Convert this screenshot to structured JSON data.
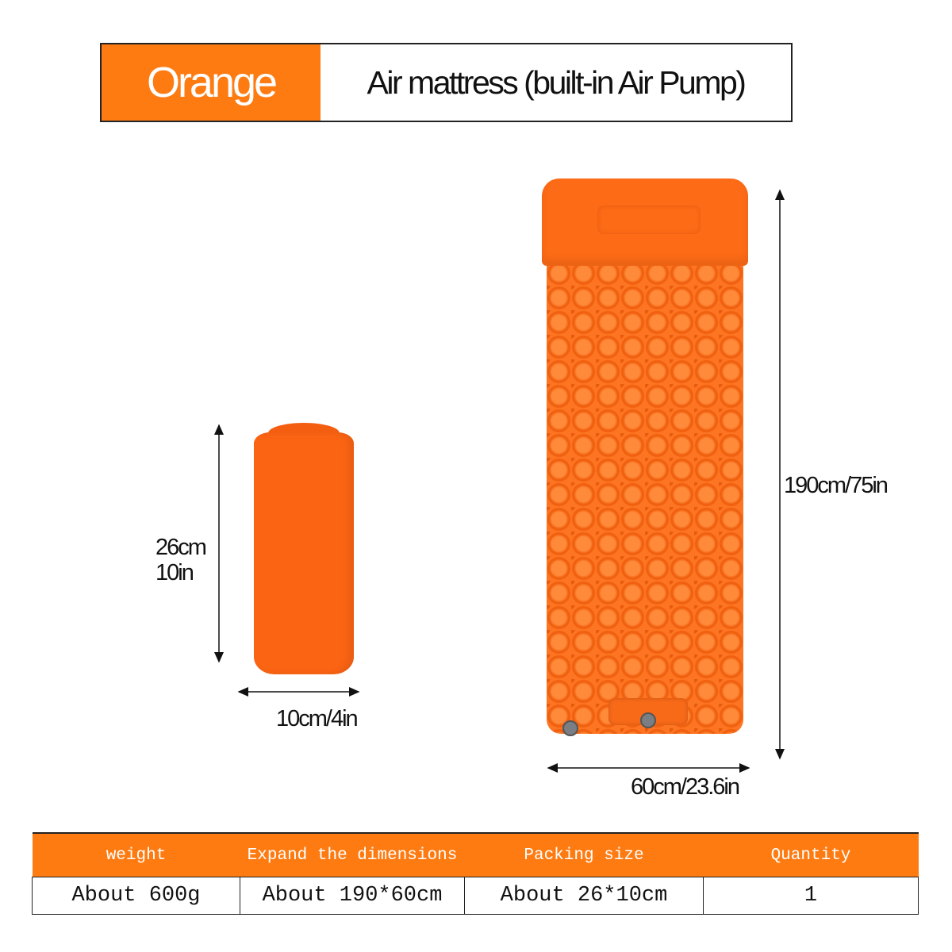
{
  "header": {
    "color_label": "Orange",
    "product_name": "Air mattress (built-in Air Pump)",
    "accent_color": "#fe7b12"
  },
  "packed": {
    "height_label_cm": "26cm",
    "height_label_in": "10in",
    "width_label": "10cm/4in"
  },
  "expanded": {
    "length_label": "190cm/75in",
    "width_label": "60cm/23.6in"
  },
  "specs": {
    "headers": [
      "weight",
      "Expand the dimensions",
      "Packing size",
      "Quantity"
    ],
    "values": [
      "About 600g",
      "About 190*60cm",
      "About 26*10cm",
      "1"
    ]
  }
}
